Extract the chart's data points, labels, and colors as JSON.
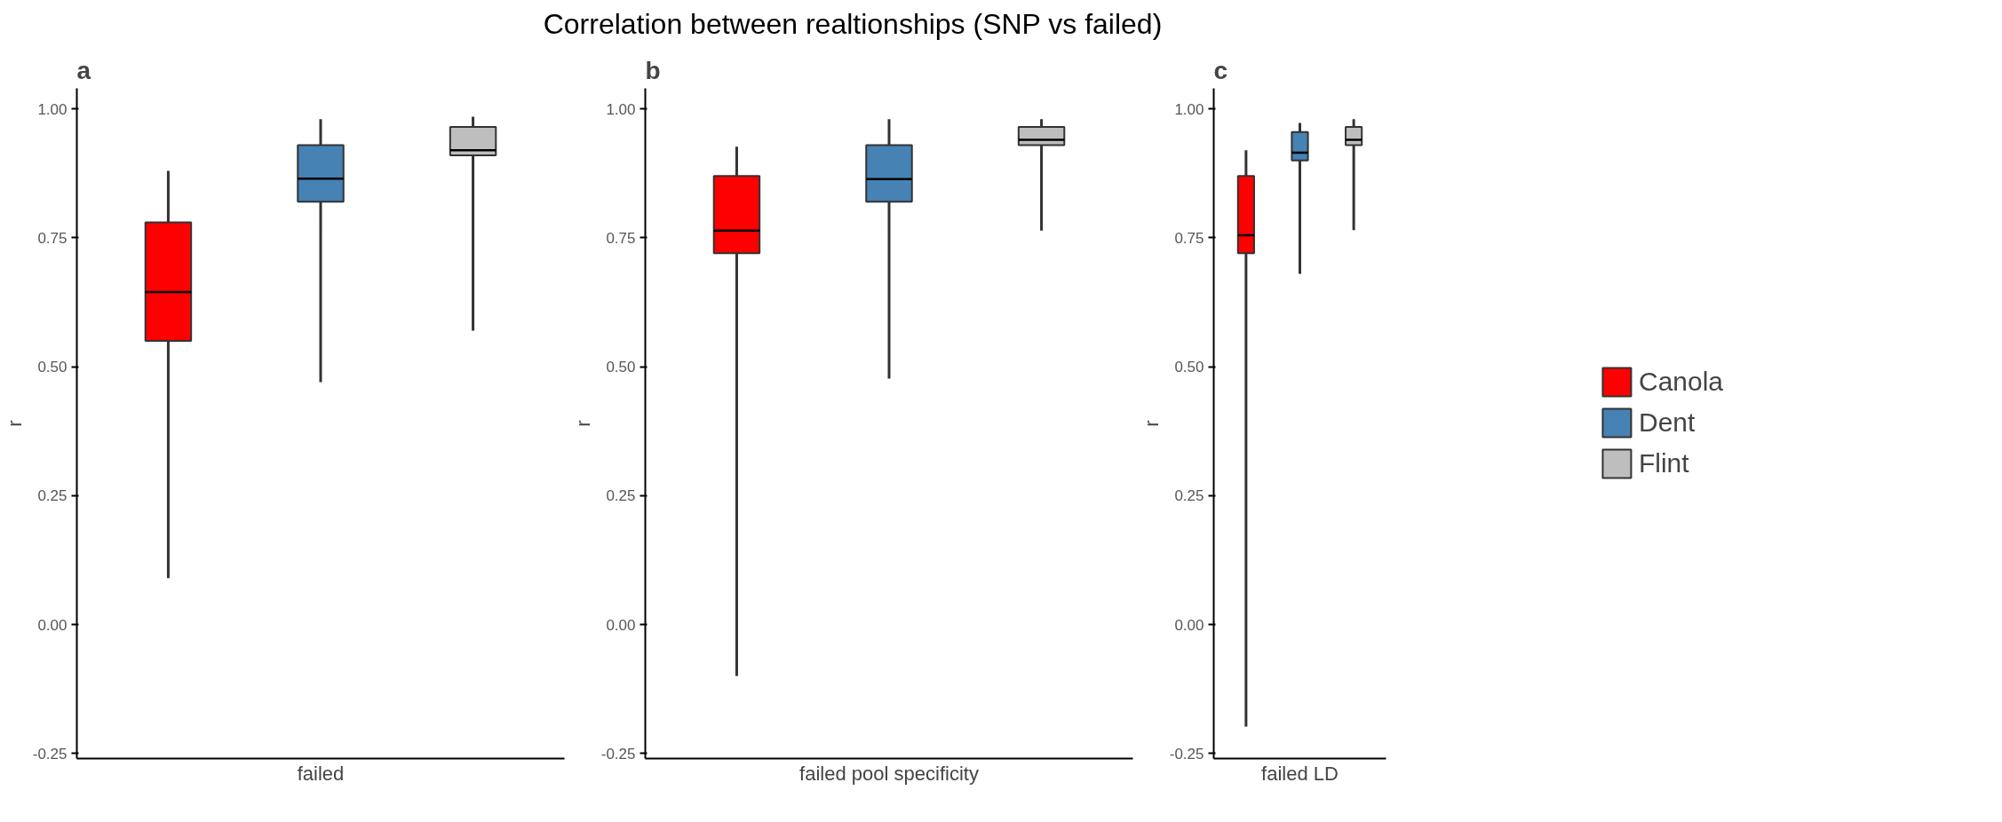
{
  "chart_data": [
    {
      "type": "box",
      "annotations": [
        "a"
      ],
      "categories": [
        null,
        null,
        null
      ],
      "xlabel": "failed",
      "ylabel": "r",
      "ylim": [
        -0.26,
        1.04
      ],
      "yticks": [
        {
          "value": -0.25,
          "label": "-0.25"
        },
        {
          "value": 0,
          "label": "0.00"
        },
        {
          "value": 0.25,
          "label": "0.25"
        },
        {
          "value": 0.5,
          "label": "0.50"
        },
        {
          "value": 0.75,
          "label": "0.75"
        },
        {
          "value": 1,
          "label": "1.00"
        }
      ],
      "grid": false,
      "legend": false,
      "series": [
        {
          "color": "#ff0000",
          "boxes": [
            {
              "low": 0.09,
              "q1": 0.55,
              "median": 0.645,
              "q3": 0.78,
              "high": 0.88
            },
            null,
            null
          ]
        },
        {
          "color": "#4682b4",
          "boxes": [
            null,
            {
              "low": 0.47,
              "q1": 0.82,
              "median": 0.865,
              "q3": 0.93,
              "high": 0.98
            },
            null
          ]
        },
        {
          "color": "#bebebe",
          "boxes": [
            null,
            null,
            {
              "low": 0.57,
              "q1": 0.91,
              "median": 0.92,
              "q3": 0.965,
              "high": 0.985
            }
          ]
        }
      ]
    },
    {
      "type": "box",
      "title": "Correlation between realtionships (SNP vs failed)",
      "annotations": [
        "b"
      ],
      "categories": [
        null,
        null,
        null
      ],
      "xlabel": "failed pool specificity",
      "ylabel": "r",
      "ylim": [
        -0.26,
        1.04
      ],
      "yticks": [
        {
          "value": -0.25,
          "label": "-0.25"
        },
        {
          "value": 0,
          "label": "0.00"
        },
        {
          "value": 0.25,
          "label": "0.25"
        },
        {
          "value": 0.5,
          "label": "0.50"
        },
        {
          "value": 0.75,
          "label": "0.75"
        },
        {
          "value": 1,
          "label": "1.00"
        }
      ],
      "grid": false,
      "legend": false,
      "series": [
        {
          "color": "#ff0000",
          "boxes": [
            {
              "low": -0.1,
              "q1": 0.72,
              "median": 0.764,
              "q3": 0.87,
              "high": 0.927
            },
            null,
            null
          ]
        },
        {
          "color": "#4682b4",
          "boxes": [
            null,
            {
              "low": 0.477,
              "q1": 0.82,
              "median": 0.864,
              "q3": 0.93,
              "high": 0.98
            },
            null
          ]
        },
        {
          "color": "#bebebe",
          "boxes": [
            null,
            null,
            {
              "low": 0.764,
              "q1": 0.93,
              "median": 0.94,
              "q3": 0.965,
              "high": 0.98
            }
          ]
        }
      ]
    },
    {
      "type": "box",
      "annotations": [
        "c"
      ],
      "categories": [
        null,
        null,
        null
      ],
      "xlabel": "failed LD",
      "ylabel": "r",
      "ylim": [
        -0.26,
        1.04
      ],
      "yticks": [
        {
          "value": -0.25,
          "label": "-0.25"
        },
        {
          "value": 0,
          "label": "0.00"
        },
        {
          "value": 0.25,
          "label": "0.25"
        },
        {
          "value": 0.5,
          "label": "0.50"
        },
        {
          "value": 0.75,
          "label": "0.75"
        },
        {
          "value": 1,
          "label": "1.00"
        }
      ],
      "grid": false,
      "legend": "right",
      "series": [
        {
          "name": "Canola",
          "color": "#ff0000",
          "boxes": [
            {
              "low": -0.198,
              "q1": 0.72,
              "median": 0.755,
              "q3": 0.87,
              "high": 0.92
            },
            null,
            null
          ]
        },
        {
          "name": "Dent",
          "color": "#4682b4",
          "boxes": [
            null,
            {
              "low": 0.68,
              "q1": 0.9,
              "median": 0.915,
              "q3": 0.955,
              "high": 0.973
            },
            null
          ]
        },
        {
          "name": "Flint",
          "color": "#bebebe",
          "boxes": [
            null,
            null,
            {
              "low": 0.765,
              "q1": 0.93,
              "median": 0.94,
              "q3": 0.965,
              "high": 0.98
            }
          ]
        }
      ]
    }
  ]
}
